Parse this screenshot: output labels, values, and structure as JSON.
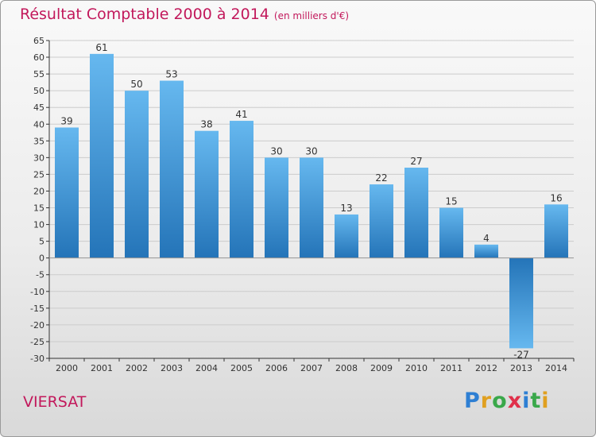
{
  "title": "Résultat Comptable 2000 à 2014",
  "subtitle": "(en milliers d'€)",
  "city": "VIERSAT",
  "logo": {
    "letters": [
      {
        "ch": "P",
        "color": "#2e7fd3"
      },
      {
        "ch": "r",
        "color": "#e0a020"
      },
      {
        "ch": "o",
        "color": "#3aa84a"
      },
      {
        "ch": "x",
        "color": "#e0304a"
      },
      {
        "ch": "i",
        "color": "#2e7fd3"
      },
      {
        "ch": "t",
        "color": "#3aa84a"
      },
      {
        "ch": "i",
        "color": "#e0a020"
      }
    ]
  },
  "colors": {
    "bar_light": "#62b4ee",
    "bar_dark": "#1f6fb4",
    "accent": "#c2185b",
    "grid": "#cccccc",
    "axis": "#333333"
  },
  "chart_data": {
    "type": "bar",
    "title": "Résultat Comptable 2000 à 2014",
    "subtitle": "(en milliers d'€)",
    "xlabel": "",
    "ylabel": "",
    "categories": [
      "2000",
      "2001",
      "2002",
      "2003",
      "2004",
      "2005",
      "2006",
      "2007",
      "2008",
      "2009",
      "2010",
      "2011",
      "2012",
      "2013",
      "2014"
    ],
    "values": [
      39,
      61,
      50,
      53,
      38,
      41,
      30,
      30,
      13,
      22,
      27,
      15,
      4,
      -27,
      16
    ],
    "ylim": [
      -30,
      65
    ],
    "yticks": [
      65,
      60,
      55,
      50,
      45,
      40,
      35,
      30,
      25,
      20,
      15,
      10,
      5,
      0,
      -5,
      -10,
      -15,
      -20,
      -25,
      -30
    ],
    "grid": true,
    "legend": "none"
  }
}
